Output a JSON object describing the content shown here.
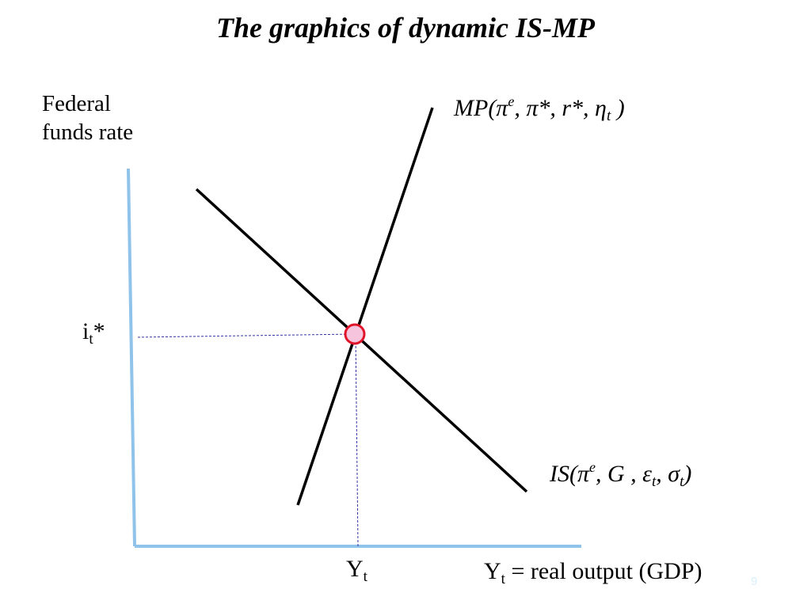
{
  "slide": {
    "title": "The graphics of dynamic IS-MP",
    "slide_number": "9",
    "slide_number_color": "#d6f0fb",
    "axis_color": "#8fc3ea",
    "guide_color": "#3333aa",
    "equilibrium_fill": "#f7c4dd",
    "equilibrium_stroke": "#e0152a"
  },
  "diagram": {
    "y_axis_label_line1": "Federal",
    "y_axis_label_line2": "funds rate",
    "x_axis_label": {
      "main": "Y",
      "sub": "t",
      "rest": " = real output (GDP)"
    },
    "y_marker": {
      "main": "i",
      "sub": "t",
      "rest": "*"
    },
    "x_marker": {
      "main": "Y",
      "sub": "t"
    },
    "mp_curve_label": {
      "a": "MP(π",
      "b": "e",
      "c": ", π*, r*, η",
      "d": "t",
      "e": " )"
    },
    "is_curve_label": {
      "a": "IS(π",
      "b": "e",
      "c": ", G , ε",
      "d": "t",
      "e": ", σ",
      "f": "t",
      "g": ")"
    }
  }
}
